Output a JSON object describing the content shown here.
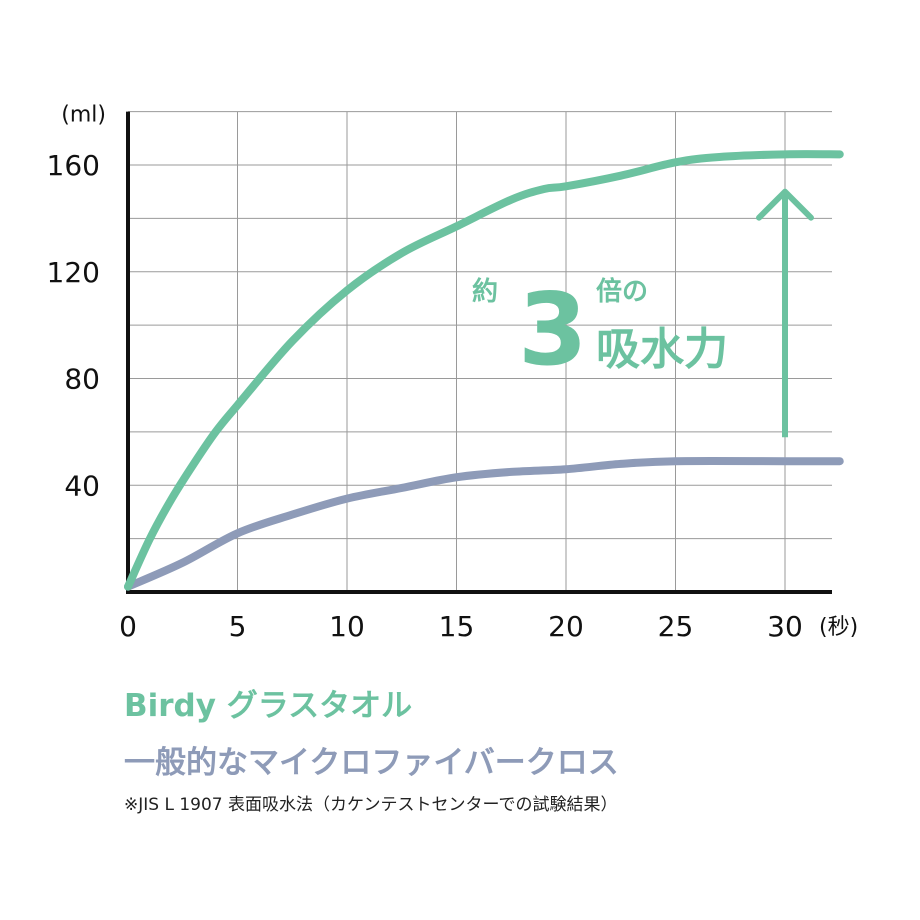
{
  "chart_data": {
    "type": "line",
    "x_unit_label": "(秒)",
    "y_unit_label": "(ml)",
    "xlim": [
      0,
      32
    ],
    "ylim": [
      0,
      180
    ],
    "x_ticks": [
      0,
      5,
      10,
      15,
      20,
      25,
      30
    ],
    "y_ticks": [
      40,
      80,
      120,
      160
    ],
    "grid": true,
    "series": [
      {
        "name": "Birdy グラスタオル",
        "color": "#6cc2a0",
        "x": [
          0,
          1,
          2,
          3,
          4,
          5,
          7.5,
          10,
          12.5,
          15,
          17.5,
          19,
          20,
          22.5,
          25,
          27,
          30,
          32.5
        ],
        "values": [
          2,
          20,
          35,
          48,
          60,
          70,
          94,
          113,
          127,
          137,
          147,
          151,
          152,
          156,
          161,
          163,
          164,
          164
        ]
      },
      {
        "name": "一般的なマイクロファイバークロス",
        "color": "#8e9bb8",
        "x": [
          0,
          2.5,
          5,
          7.5,
          10,
          12.5,
          15,
          17.5,
          20,
          22.5,
          25,
          30,
          32.5
        ],
        "values": [
          2,
          11,
          22,
          29,
          35,
          39,
          43,
          45,
          46,
          48,
          49,
          49,
          49
        ]
      }
    ],
    "annotation": {
      "prefix": "約",
      "number": "3",
      "suffix": "倍の",
      "text": "吸水力",
      "arrow_x": 30,
      "arrow_from": 58,
      "arrow_to": 150,
      "color": "#6cc2a0"
    }
  },
  "legend": {
    "birdy": "Birdy グラスタオル",
    "microfiber": "一般的なマイクロファイバークロス"
  },
  "footnote": "※JIS L 1907 表面吸水法（カケンテストセンターでの試験結果）"
}
